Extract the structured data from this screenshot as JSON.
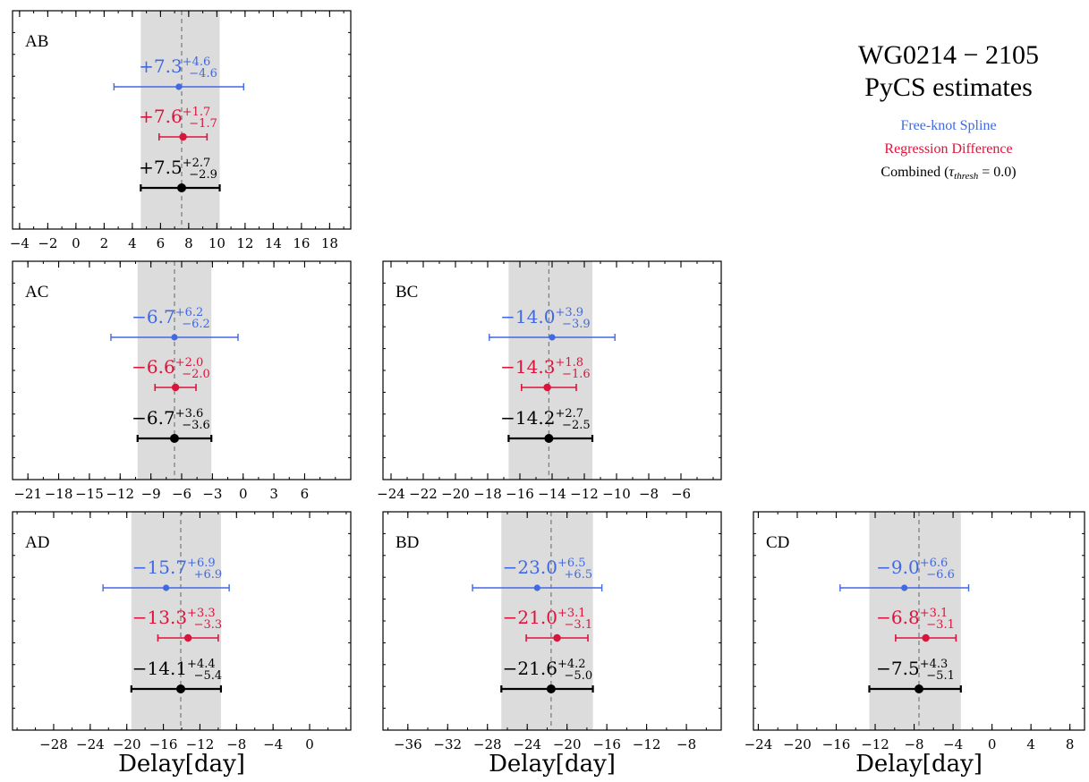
{
  "figure": {
    "title_line1": "WG0214 − 2105",
    "title_line2": "PyCS estimates",
    "legend": [
      {
        "label": "Free-knot Spline",
        "color": "#4169e1"
      },
      {
        "label": "Regression Difference",
        "color": "#dc143c"
      },
      {
        "label": "Combined (",
        "math": "τ",
        "sub": "thresh",
        "tail": " = 0.0)",
        "color": "#000000"
      }
    ],
    "xlabel": "Delay[day]"
  },
  "chart_data": [
    {
      "type": "errorbar",
      "panel": "AB",
      "xlim": [
        -4.5,
        19.5
      ],
      "ticks": [
        -4,
        -2,
        0,
        2,
        4,
        6,
        8,
        10,
        12,
        14,
        16,
        18
      ],
      "band": [
        4.6,
        10.2
      ],
      "vline": 7.5,
      "series": [
        {
          "name": "Free-knot Spline",
          "value": 7.3,
          "plus": 4.6,
          "minus": 4.6,
          "label": "+7.3",
          "plus_label": "+4.6",
          "minus_label": "−4.6"
        },
        {
          "name": "Regression Difference",
          "value": 7.6,
          "plus": 1.7,
          "minus": 1.7,
          "label": "+7.6",
          "plus_label": "+1.7",
          "minus_label": "−1.7"
        },
        {
          "name": "Combined",
          "value": 7.5,
          "plus": 2.7,
          "minus": 2.9,
          "label": "+7.5",
          "plus_label": "+2.7",
          "minus_label": "−2.9"
        }
      ]
    },
    {
      "type": "errorbar",
      "panel": "AC",
      "xlim": [
        -22.5,
        10.5
      ],
      "ticks": [
        -21,
        -18,
        -15,
        -12,
        -9,
        -6,
        -3,
        0,
        3,
        6
      ],
      "band": [
        -10.3,
        -3.1
      ],
      "vline": -6.7,
      "series": [
        {
          "name": "Free-knot Spline",
          "value": -6.7,
          "plus": 6.2,
          "minus": 6.2,
          "label": "−6.7",
          "plus_label": "+6.2",
          "minus_label": "−6.2"
        },
        {
          "name": "Regression Difference",
          "value": -6.6,
          "plus": 2.0,
          "minus": 2.0,
          "label": "−6.6",
          "plus_label": "+2.0",
          "minus_label": "−2.0"
        },
        {
          "name": "Combined",
          "value": -6.7,
          "plus": 3.6,
          "minus": 3.6,
          "label": "−6.7",
          "plus_label": "+3.6",
          "minus_label": "−3.6"
        }
      ]
    },
    {
      "type": "errorbar",
      "panel": "BC",
      "xlim": [
        -24.5,
        -3.5
      ],
      "ticks": [
        -24,
        -22,
        -20,
        -18,
        -16,
        -14,
        -12,
        -10,
        -8,
        -6
      ],
      "band": [
        -16.7,
        -11.5
      ],
      "vline": -14.2,
      "series": [
        {
          "name": "Free-knot Spline",
          "value": -14.0,
          "plus": 3.9,
          "minus": 3.9,
          "label": "−14.0",
          "plus_label": "+3.9",
          "minus_label": "−3.9"
        },
        {
          "name": "Regression Difference",
          "value": -14.3,
          "plus": 1.8,
          "minus": 1.6,
          "label": "−14.3",
          "plus_label": "+1.8",
          "minus_label": "−1.6"
        },
        {
          "name": "Combined",
          "value": -14.2,
          "plus": 2.7,
          "minus": 2.5,
          "label": "−14.2",
          "plus_label": "+2.7",
          "minus_label": "−2.5"
        }
      ]
    },
    {
      "type": "errorbar",
      "panel": "AD",
      "xlim": [
        -32.5,
        4.5
      ],
      "ticks": [
        -28,
        -24,
        -20,
        -16,
        -12,
        -8,
        -4,
        0
      ],
      "band": [
        -19.5,
        -9.7
      ],
      "vline": -14.1,
      "series": [
        {
          "name": "Free-knot Spline",
          "value": -15.7,
          "plus": 6.9,
          "minus": 6.9,
          "label": "−15.7",
          "plus_label": "+6.9",
          "minus_label": "+6.9"
        },
        {
          "name": "Regression Difference",
          "value": -13.3,
          "plus": 3.3,
          "minus": 3.3,
          "label": "−13.3",
          "plus_label": "+3.3",
          "minus_label": "−3.3"
        },
        {
          "name": "Combined",
          "value": -14.1,
          "plus": 4.4,
          "minus": 5.4,
          "label": "−14.1",
          "plus_label": "+4.4",
          "minus_label": "−5.4"
        }
      ]
    },
    {
      "type": "errorbar",
      "panel": "BD",
      "xlim": [
        -38.5,
        -4.5
      ],
      "ticks": [
        -36,
        -32,
        -28,
        -24,
        -20,
        -16,
        -12,
        -8
      ],
      "band": [
        -26.6,
        -17.4
      ],
      "vline": -21.6,
      "series": [
        {
          "name": "Free-knot Spline",
          "value": -23.0,
          "plus": 6.5,
          "minus": 6.5,
          "label": "−23.0",
          "plus_label": "+6.5",
          "minus_label": "+6.5"
        },
        {
          "name": "Regression Difference",
          "value": -21.0,
          "plus": 3.1,
          "minus": 3.1,
          "label": "−21.0",
          "plus_label": "+3.1",
          "minus_label": "−3.1"
        },
        {
          "name": "Combined",
          "value": -21.6,
          "plus": 4.2,
          "minus": 5.0,
          "label": "−21.6",
          "plus_label": "+4.2",
          "minus_label": "−5.0"
        }
      ]
    },
    {
      "type": "errorbar",
      "panel": "CD",
      "xlim": [
        -24.5,
        9.5
      ],
      "ticks": [
        -24,
        -20,
        -16,
        -12,
        -8,
        -4,
        0,
        4,
        8
      ],
      "band": [
        -12.6,
        -3.2
      ],
      "vline": -7.5,
      "series": [
        {
          "name": "Free-knot Spline",
          "value": -9.0,
          "plus": 6.6,
          "minus": 6.6,
          "label": "−9.0",
          "plus_label": "+6.6",
          "minus_label": "−6.6"
        },
        {
          "name": "Regression Difference",
          "value": -6.8,
          "plus": 3.1,
          "minus": 3.1,
          "label": "−6.8",
          "plus_label": "+3.1",
          "minus_label": "−3.1"
        },
        {
          "name": "Combined",
          "value": -7.5,
          "plus": 4.3,
          "minus": 5.1,
          "label": "−7.5",
          "plus_label": "+4.3",
          "minus_label": "−5.1"
        }
      ]
    }
  ]
}
